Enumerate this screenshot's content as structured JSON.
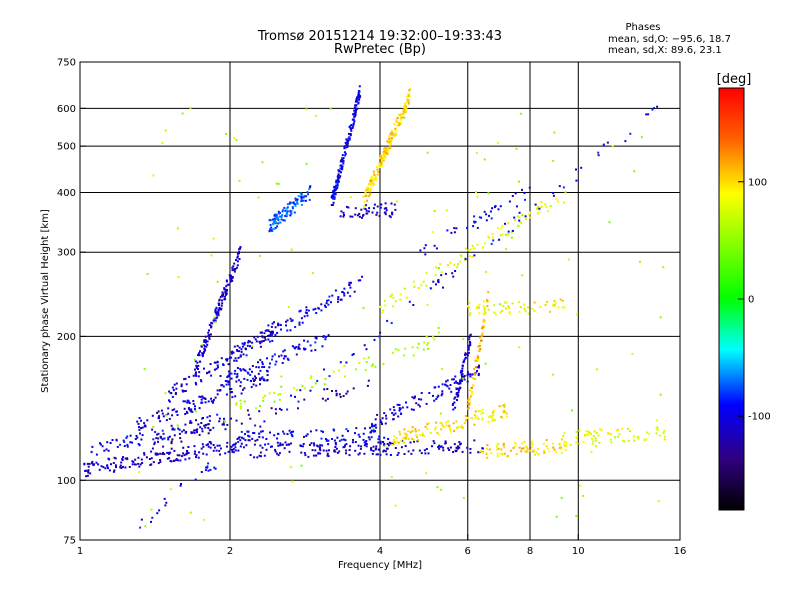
{
  "chart_data": {
    "type": "scatter",
    "title": "Tromsø 20151214 19:32:00–19:33:43",
    "subtitle": "RwPretec (Bp)",
    "xlabel": "Frequency [MHz]",
    "ylabel": "Stationary phase Virtual Height [km]",
    "x_scale": "log",
    "y_scale": "log",
    "xlim": [
      1,
      16
    ],
    "ylim": [
      75,
      750
    ],
    "x_ticks": [
      1,
      2,
      4,
      6,
      8,
      10,
      16
    ],
    "x_tick_labels": [
      "1",
      "2",
      "4",
      "6",
      "8",
      "10",
      "16"
    ],
    "x_grid": [
      2,
      4,
      6,
      8,
      10
    ],
    "y_ticks": [
      75,
      100,
      200,
      300,
      400,
      500,
      600,
      750
    ],
    "y_tick_labels": [
      "75",
      "100",
      "200",
      "300",
      "400",
      "500",
      "600",
      "750"
    ],
    "y_grid": [
      100,
      200,
      300,
      400,
      500,
      600
    ],
    "grid": true,
    "stats": {
      "heading": "Phases",
      "o_line": "mean, sd,O: −95.6, 18.7",
      "x_line": "mean, sd,X:  89.6, 23.1"
    },
    "colorbar": {
      "label": "[deg]",
      "min": -180,
      "max": 180,
      "ticks": [
        100,
        0,
        -100
      ],
      "tick_labels": [
        "100",
        "0",
        "-100"
      ]
    },
    "traces": [
      {
        "x0": 1.0,
        "x1": 2.2,
        "h0": 105,
        "h1": 120,
        "phase": -110,
        "n": 170
      },
      {
        "x0": 1.05,
        "x1": 2.0,
        "h0": 115,
        "h1": 135,
        "phase": -100,
        "n": 90
      },
      {
        "x0": 1.3,
        "x1": 2.4,
        "h0": 130,
        "h1": 165,
        "phase": -105,
        "n": 120
      },
      {
        "x0": 1.5,
        "x1": 2.5,
        "h0": 150,
        "h1": 210,
        "phase": -110,
        "n": 110
      },
      {
        "x0": 1.7,
        "x1": 2.1,
        "h0": 170,
        "h1": 300,
        "phase": -110,
        "n": 150
      },
      {
        "x0": 1.9,
        "x1": 3.2,
        "h0": 160,
        "h1": 200,
        "phase": -100,
        "n": 90
      },
      {
        "x0": 2.2,
        "x1": 6.5,
        "h0": 115,
        "h1": 118,
        "phase": -110,
        "n": 180
      },
      {
        "x0": 2.1,
        "x1": 4.2,
        "h0": 122,
        "h1": 125,
        "phase": -100,
        "n": 90
      },
      {
        "x0": 3.8,
        "x1": 6.4,
        "h0": 130,
        "h1": 170,
        "phase": -105,
        "n": 100
      },
      {
        "x0": 5.6,
        "x1": 6.1,
        "h0": 140,
        "h1": 200,
        "phase": -110,
        "n": 60
      },
      {
        "x0": 2.0,
        "x1": 3.7,
        "h0": 180,
        "h1": 260,
        "phase": -100,
        "n": 90
      },
      {
        "x0": 2.4,
        "x1": 2.9,
        "h0": 340,
        "h1": 400,
        "phase": -75,
        "n": 110
      },
      {
        "x0": 3.2,
        "x1": 3.65,
        "h0": 380,
        "h1": 650,
        "phase": -100,
        "n": 170
      },
      {
        "x0": 3.3,
        "x1": 4.3,
        "h0": 363,
        "h1": 368,
        "phase": -110,
        "n": 50
      },
      {
        "x0": 3.7,
        "x1": 4.6,
        "h0": 380,
        "h1": 640,
        "phase": 100,
        "n": 180
      },
      {
        "x0": 4.0,
        "x1": 7.2,
        "h0": 120,
        "h1": 140,
        "phase": 95,
        "n": 120
      },
      {
        "x0": 6.3,
        "x1": 9.5,
        "h0": 115,
        "h1": 118,
        "phase": 100,
        "n": 80
      },
      {
        "x0": 6.0,
        "x1": 6.6,
        "h0": 140,
        "h1": 240,
        "phase": 110,
        "n": 60
      },
      {
        "x0": 6.0,
        "x1": 9.4,
        "h0": 228,
        "h1": 232,
        "phase": 90,
        "n": 60
      },
      {
        "x0": 9.0,
        "x1": 15.0,
        "h0": 122,
        "h1": 126,
        "phase": 80,
        "n": 70
      },
      {
        "x0": 2.0,
        "x1": 5.5,
        "h0": 140,
        "h1": 200,
        "phase": 60,
        "n": 60
      },
      {
        "x0": 4.0,
        "x1": 9.5,
        "h0": 230,
        "h1": 400,
        "phase": 80,
        "n": 90
      },
      {
        "x0": 1.4,
        "x1": 3.8,
        "h0": 120,
        "h1": 160,
        "phase": -130,
        "n": 60
      },
      {
        "x0": 4.8,
        "x1": 8.0,
        "h0": 300,
        "h1": 400,
        "phase": -100,
        "n": 40
      },
      {
        "x0": 1.3,
        "x1": 15.0,
        "h0": 80,
        "h1": 620,
        "phase": 60,
        "n": 120
      },
      {
        "x0": 1.3,
        "x1": 15.0,
        "h0": 80,
        "h1": 620,
        "phase": -100,
        "n": 100
      }
    ]
  }
}
